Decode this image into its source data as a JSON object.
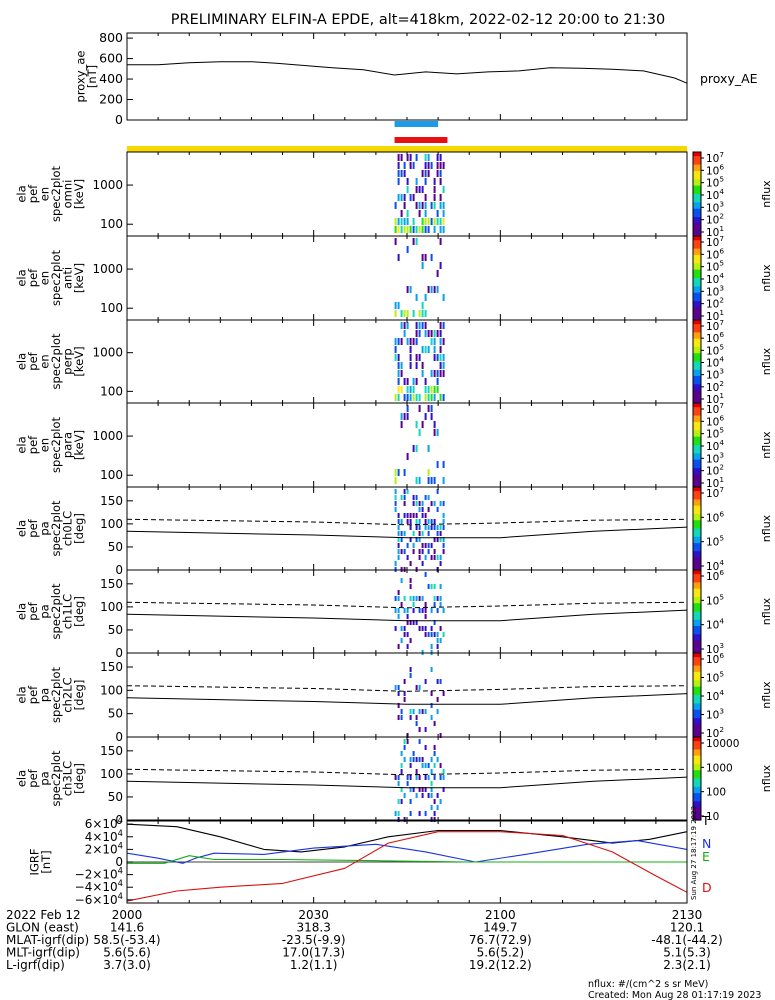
{
  "title": "PRELIMINARY ELFIN-A EPDE, alt=418km, 2022-02-12 20:00 to 21:30",
  "chart_data": [
    {
      "type": "line",
      "panel": "proxy_ae",
      "ylabel": [
        "proxy_ae",
        "[nT]"
      ],
      "legend": "proxy_AE",
      "yticks": [
        "800",
        "600",
        "400",
        "200",
        "0"
      ],
      "ylim": [
        0,
        850
      ],
      "x_minutes": [
        0,
        5,
        10,
        15,
        20,
        24,
        28,
        33,
        38,
        43,
        48,
        53,
        58,
        63,
        68,
        73,
        78,
        83,
        88,
        90
      ],
      "values": [
        540,
        540,
        560,
        570,
        570,
        555,
        535,
        510,
        490,
        440,
        470,
        450,
        470,
        480,
        510,
        505,
        495,
        480,
        410,
        360
      ]
    },
    {
      "type": "bar",
      "panel": "science zone bars",
      "bars": [
        {
          "color": "#1a9be8",
          "start_min": 43,
          "end_min": 50
        },
        {
          "color": "#e81010",
          "start_min": 43,
          "end_min": 51.5
        }
      ],
      "strip_color": "#f5d800"
    },
    {
      "type": "heatmap",
      "panel": "omni",
      "ylabel": [
        "ela",
        "pef",
        "en",
        "spec2plot",
        "omni",
        "[keV]"
      ],
      "yticks": [
        "1000",
        "100"
      ],
      "ylog": true,
      "ylim": [
        50,
        7000
      ],
      "cbar_label": "nflux",
      "cbar_ticks": [
        "10^7",
        "10^6",
        "10^5",
        "10^4",
        "10^3",
        "10^2",
        "10^1"
      ],
      "time_window_min": [
        43,
        51
      ]
    },
    {
      "type": "heatmap",
      "panel": "anti",
      "ylabel": [
        "ela",
        "pef",
        "en",
        "spec2plot",
        "anti",
        "[keV]"
      ],
      "yticks": [
        "1000",
        "100"
      ],
      "ylog": true,
      "ylim": [
        50,
        7000
      ],
      "cbar_label": "nflux",
      "cbar_ticks": [
        "10^7",
        "10^6",
        "10^5",
        "10^4",
        "10^3",
        "10^2",
        "10^1"
      ],
      "time_window_min": [
        43,
        51
      ]
    },
    {
      "type": "heatmap",
      "panel": "perp",
      "ylabel": [
        "ela",
        "pef",
        "en",
        "spec2plot",
        "perp",
        "[keV]"
      ],
      "yticks": [
        "1000",
        "100"
      ],
      "ylog": true,
      "ylim": [
        50,
        7000
      ],
      "cbar_label": "nflux",
      "cbar_ticks": [
        "10^7",
        "10^6",
        "10^5",
        "10^4",
        "10^3",
        "10^2",
        "10^1"
      ],
      "time_window_min": [
        43,
        51
      ]
    },
    {
      "type": "heatmap",
      "panel": "para",
      "ylabel": [
        "ela",
        "pef",
        "en",
        "spec2plot",
        "para",
        "[keV]"
      ],
      "yticks": [
        "1000",
        "100"
      ],
      "ylog": true,
      "ylim": [
        50,
        7000
      ],
      "cbar_label": "nflux",
      "cbar_ticks": [
        "10^7",
        "10^6",
        "10^5",
        "10^4",
        "10^3",
        "10^2",
        "10^1"
      ],
      "time_window_min": [
        43,
        51
      ]
    },
    {
      "type": "heatmap",
      "panel": "ch0LC",
      "ylabel": [
        "ela",
        "pef",
        "pa",
        "spec2plot",
        "ch0LC",
        "[deg]"
      ],
      "yticks": [
        "150",
        "100",
        "50",
        "0"
      ],
      "ylim": [
        0,
        180
      ],
      "cbar_label": "nflux",
      "cbar_ticks": [
        "10^7",
        "10^6",
        "10^5",
        "10^4"
      ],
      "lc_solid": [
        [
          0,
          84
        ],
        [
          30,
          76
        ],
        [
          45,
          70
        ],
        [
          60,
          70
        ],
        [
          75,
          84
        ],
        [
          90,
          93
        ]
      ],
      "lc_dashed": [
        [
          0,
          110
        ],
        [
          30,
          104
        ],
        [
          45,
          98
        ],
        [
          60,
          102
        ],
        [
          75,
          108
        ],
        [
          90,
          110
        ]
      ]
    },
    {
      "type": "heatmap",
      "panel": "ch1LC",
      "ylabel": [
        "ela",
        "pef",
        "pa",
        "spec2plot",
        "ch1LC",
        "[deg]"
      ],
      "yticks": [
        "150",
        "100",
        "50",
        "0"
      ],
      "ylim": [
        0,
        180
      ],
      "cbar_label": "nflux",
      "cbar_ticks": [
        "10^6",
        "10^5",
        "10^4",
        "10^3"
      ],
      "lc_solid": [
        [
          0,
          84
        ],
        [
          30,
          76
        ],
        [
          45,
          70
        ],
        [
          60,
          70
        ],
        [
          75,
          84
        ],
        [
          90,
          93
        ]
      ],
      "lc_dashed": [
        [
          0,
          110
        ],
        [
          30,
          104
        ],
        [
          45,
          98
        ],
        [
          60,
          102
        ],
        [
          75,
          108
        ],
        [
          90,
          110
        ]
      ]
    },
    {
      "type": "heatmap",
      "panel": "ch2LC",
      "ylabel": [
        "ela",
        "pef",
        "pa",
        "spec2plot",
        "ch2LC",
        "[deg]"
      ],
      "yticks": [
        "150",
        "100",
        "50",
        "0"
      ],
      "ylim": [
        0,
        180
      ],
      "cbar_label": "nflux",
      "cbar_ticks": [
        "10^6",
        "10^5",
        "10^4",
        "10^3",
        "10^2"
      ],
      "lc_solid": [
        [
          0,
          84
        ],
        [
          30,
          76
        ],
        [
          45,
          70
        ],
        [
          60,
          70
        ],
        [
          75,
          84
        ],
        [
          90,
          93
        ]
      ],
      "lc_dashed": [
        [
          0,
          110
        ],
        [
          30,
          104
        ],
        [
          45,
          98
        ],
        [
          60,
          102
        ],
        [
          75,
          108
        ],
        [
          90,
          110
        ]
      ]
    },
    {
      "type": "heatmap",
      "panel": "ch3LC",
      "ylabel": [
        "ela",
        "pef",
        "pa",
        "spec2plot",
        "ch3LC",
        "[deg]"
      ],
      "yticks": [
        "150",
        "100",
        "50",
        "0"
      ],
      "ylim": [
        0,
        180
      ],
      "cbar_label": "nflux",
      "cbar_ticks": [
        "10000",
        "1000",
        "100",
        "10"
      ],
      "lc_solid": [
        [
          0,
          84
        ],
        [
          30,
          76
        ],
        [
          45,
          70
        ],
        [
          60,
          70
        ],
        [
          75,
          84
        ],
        [
          90,
          93
        ]
      ],
      "lc_dashed": [
        [
          0,
          110
        ],
        [
          30,
          104
        ],
        [
          45,
          98
        ],
        [
          60,
          102
        ],
        [
          75,
          108
        ],
        [
          90,
          110
        ]
      ]
    },
    {
      "type": "line",
      "panel": "IGRF",
      "ylabel": [
        "IGRF",
        "[nT]"
      ],
      "yticks": [
        "6×10^4",
        "4×10^4",
        "2×10^4",
        "0",
        "−2×10^4",
        "−4×10^4",
        "−6×10^4"
      ],
      "ylim": [
        -65000,
        65000
      ],
      "series": [
        {
          "name": "T",
          "color": "#000000",
          "points": [
            [
              0,
              60000
            ],
            [
              8,
              56000
            ],
            [
              15,
              40000
            ],
            [
              22,
              20000
            ],
            [
              28,
              16000
            ],
            [
              35,
              24000
            ],
            [
              42,
              40000
            ],
            [
              50,
              50000
            ],
            [
              60,
              50000
            ],
            [
              70,
              40000
            ],
            [
              78,
              30000
            ],
            [
              84,
              36000
            ],
            [
              90,
              48000
            ]
          ]
        },
        {
          "name": "N",
          "color": "#1a33e0",
          "points": [
            [
              0,
              14000
            ],
            [
              5,
              6000
            ],
            [
              9,
              -2000
            ],
            [
              11,
              6000
            ],
            [
              14,
              14000
            ],
            [
              22,
              12000
            ],
            [
              30,
              22000
            ],
            [
              40,
              28000
            ],
            [
              48,
              16000
            ],
            [
              56,
              0
            ],
            [
              64,
              12000
            ],
            [
              74,
              28000
            ],
            [
              82,
              34000
            ],
            [
              90,
              20000
            ]
          ]
        },
        {
          "name": "E",
          "color": "#10b010",
          "points": [
            [
              0,
              -2000
            ],
            [
              6,
              -2000
            ],
            [
              10,
              10000
            ],
            [
              14,
              4000
            ],
            [
              25,
              4000
            ],
            [
              40,
              2000
            ],
            [
              55,
              0
            ],
            [
              70,
              0
            ],
            [
              90,
              0
            ]
          ]
        },
        {
          "name": "D",
          "color": "#d81010",
          "points": [
            [
              0,
              -62000
            ],
            [
              8,
              -46000
            ],
            [
              15,
              -40000
            ],
            [
              25,
              -34000
            ],
            [
              35,
              -10000
            ],
            [
              42,
              30000
            ],
            [
              50,
              48000
            ],
            [
              60,
              48000
            ],
            [
              70,
              42000
            ],
            [
              78,
              16000
            ],
            [
              85,
              -22000
            ],
            [
              90,
              -48000
            ]
          ]
        }
      ]
    }
  ],
  "colorbar_side_text": "Sun Aug 27 18:17:19 2023",
  "xaxis": {
    "tick_labels": [
      "2000",
      "2030",
      "2100",
      "2130"
    ],
    "rows": [
      {
        "label": "2022 Feb 12",
        "values": [
          "2000",
          "2030",
          "2100",
          "2130"
        ]
      },
      {
        "label": "GLON (east)",
        "values": [
          "141.6",
          "318.3",
          "149.7",
          "120.1"
        ]
      },
      {
        "label": "MLAT-igrf(dip)",
        "values": [
          "58.5(-53.4)",
          "-23.5(-9.9)",
          "76.7(72.9)",
          "-48.1(-44.2)"
        ]
      },
      {
        "label": "MLT-igrf(dip)",
        "values": [
          "5.6(5.6)",
          "17.0(17.3)",
          "5.6(5.2)",
          "5.1(5.3)"
        ]
      },
      {
        "label": "L-igrf(dip)",
        "values": [
          "3.7(3.0)",
          "1.2(1.1)",
          "19.2(12.2)",
          "2.3(2.1)"
        ]
      }
    ]
  },
  "footer": {
    "units": "nflux: #/(cm^2 s sr MeV)",
    "created": "Created: Mon Aug 28 01:17:19 2023"
  }
}
